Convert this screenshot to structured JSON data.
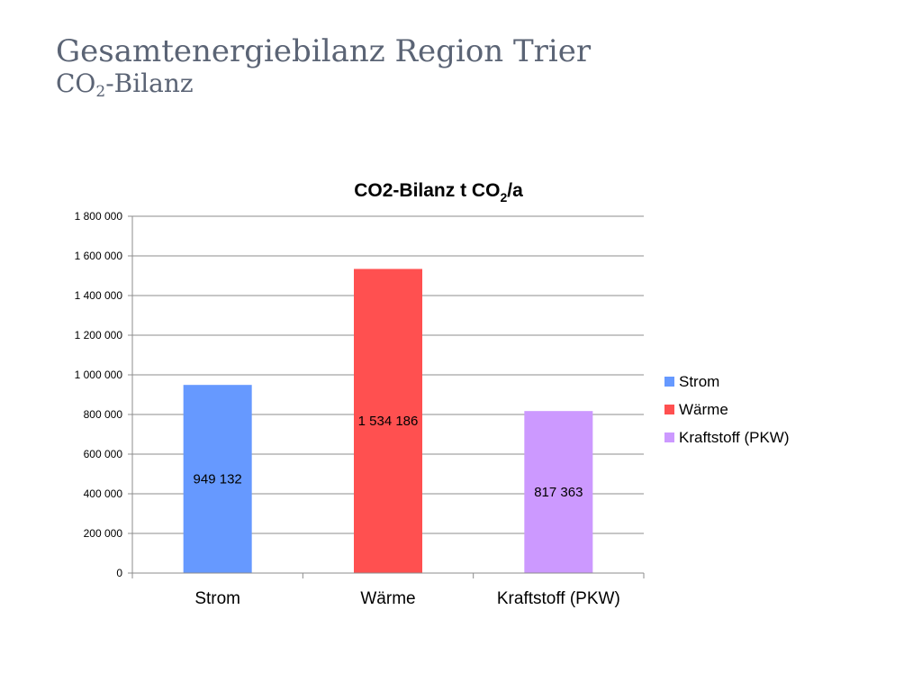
{
  "slide": {
    "title": "Gesamtenergiebilanz Region Trier",
    "subtitle_prefix": "CO",
    "subtitle_sub": "2",
    "subtitle_suffix": "-Bilanz"
  },
  "chart_data": {
    "type": "bar",
    "title_prefix": "CO2-Bilanz t CO",
    "title_sub": "2",
    "title_suffix": "/a",
    "categories": [
      "Strom",
      "Wärme",
      "Kraftstoff (PKW)"
    ],
    "values": [
      949132,
      1534186,
      817363
    ],
    "value_labels": [
      "949 132",
      "1 534 186",
      "817 363"
    ],
    "colors": [
      "#6699ff",
      "#ff5050",
      "#cc99ff"
    ],
    "yticks": [
      "0",
      "200 000",
      "400 000",
      "600 000",
      "800 000",
      "1 000 000",
      "1 200 000",
      "1 400 000",
      "1 600 000",
      "1 800 000"
    ],
    "ylim": [
      0,
      1800000
    ],
    "grid": true,
    "legend": {
      "position": "right",
      "items": [
        "Strom",
        "Wärme",
        "Kraftstoff (PKW)"
      ]
    }
  }
}
